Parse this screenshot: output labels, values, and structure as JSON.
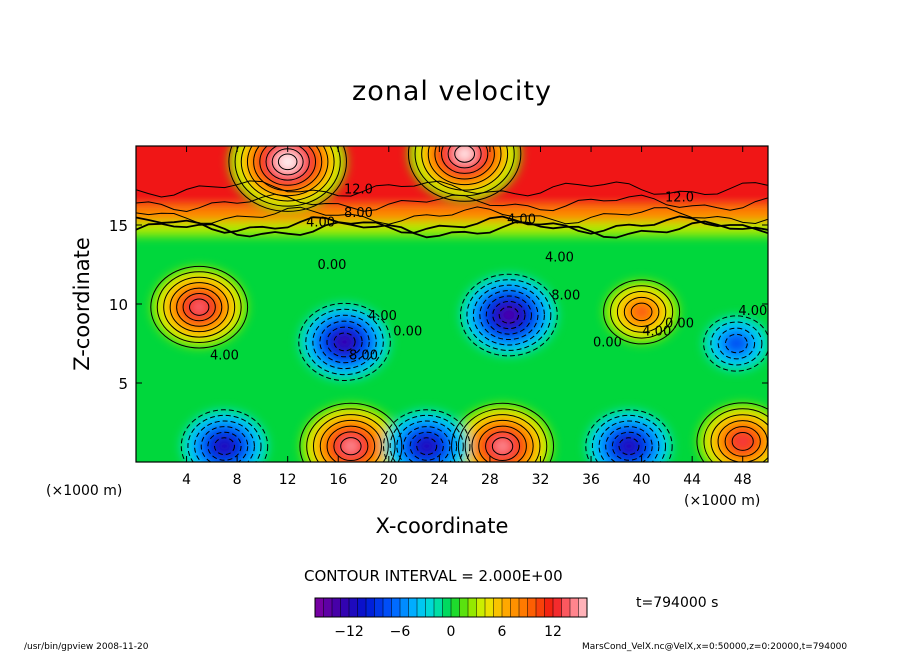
{
  "chart_data": {
    "type": "contour",
    "title": "zonal velocity",
    "xlabel": "X-coordinate",
    "ylabel": "Z-coordinate",
    "x_unit": "(×1000 m)",
    "xlim": [
      0,
      50
    ],
    "ylim": [
      0,
      20
    ],
    "x_ticks": [
      4,
      8,
      12,
      16,
      20,
      24,
      28,
      32,
      36,
      40,
      44,
      48
    ],
    "y_ticks": [
      5,
      10,
      15
    ],
    "contour_interval_label": "CONTOUR INTERVAL = 2.000E+00",
    "colorbar": {
      "min": -16,
      "max": 16,
      "ticks": [
        -12,
        -6,
        0,
        6,
        12
      ]
    },
    "contour_labels": [
      {
        "x": 17.6,
        "z": 17.0,
        "text": "12.0"
      },
      {
        "x": 43.0,
        "z": 16.5,
        "text": "12.0"
      },
      {
        "x": 17.6,
        "z": 15.5,
        "text": "8.00"
      },
      {
        "x": 14.6,
        "z": 14.9,
        "text": "4.00"
      },
      {
        "x": 30.5,
        "z": 15.1,
        "text": "4.00"
      },
      {
        "x": 15.5,
        "z": 12.2,
        "text": "0.00"
      },
      {
        "x": 33.5,
        "z": 12.7,
        "text": "4.00"
      },
      {
        "x": 34.0,
        "z": 10.3,
        "text": "8.00"
      },
      {
        "x": 19.5,
        "z": 9.0,
        "text": "4.00"
      },
      {
        "x": 18.0,
        "z": 6.5,
        "text": "8.00"
      },
      {
        "x": 21.5,
        "z": 8.0,
        "text": "0.00"
      },
      {
        "x": 37.3,
        "z": 7.3,
        "text": "0.00"
      },
      {
        "x": 41.2,
        "z": 8.0,
        "text": "4.00"
      },
      {
        "x": 43.0,
        "z": 8.5,
        "text": "0.00"
      },
      {
        "x": 48.8,
        "z": 9.3,
        "text": "4.00"
      },
      {
        "x": 7.0,
        "z": 6.5,
        "text": "4.00"
      }
    ],
    "features": [
      {
        "x": 5,
        "z": 9.8,
        "value": 14,
        "kind": "maximum"
      },
      {
        "x": 16.5,
        "z": 7.6,
        "value": -13,
        "kind": "minimum"
      },
      {
        "x": 29.5,
        "z": 9.3,
        "value": -14,
        "kind": "minimum"
      },
      {
        "x": 40,
        "z": 9.5,
        "value": 10,
        "kind": "maximum"
      },
      {
        "x": 47.5,
        "z": 7.5,
        "value": -8,
        "kind": "minimum"
      },
      {
        "x": 17,
        "z": 1,
        "value": 15,
        "kind": "maximum"
      },
      {
        "x": 29,
        "z": 1,
        "value": 15,
        "kind": "maximum"
      },
      {
        "x": 48,
        "z": 1.3,
        "value": 13,
        "kind": "maximum"
      },
      {
        "x": 23,
        "z": 1,
        "value": -12,
        "kind": "minimum"
      },
      {
        "x": 39,
        "z": 1,
        "value": -12,
        "kind": "minimum"
      },
      {
        "x": 7,
        "z": 1,
        "value": -12,
        "kind": "minimum"
      },
      {
        "x": 12,
        "z": 19,
        "value": 18,
        "kind": "maximum"
      },
      {
        "x": 26,
        "z": 19.5,
        "value": 17,
        "kind": "maximum"
      }
    ]
  },
  "time_label": "t=794000 s",
  "footer_left": "/usr/bin/gpview   2008-11-20",
  "footer_right": "MarsCond_VelX.nc@VelX,x=0:50000,z=0:20000,t=794000"
}
